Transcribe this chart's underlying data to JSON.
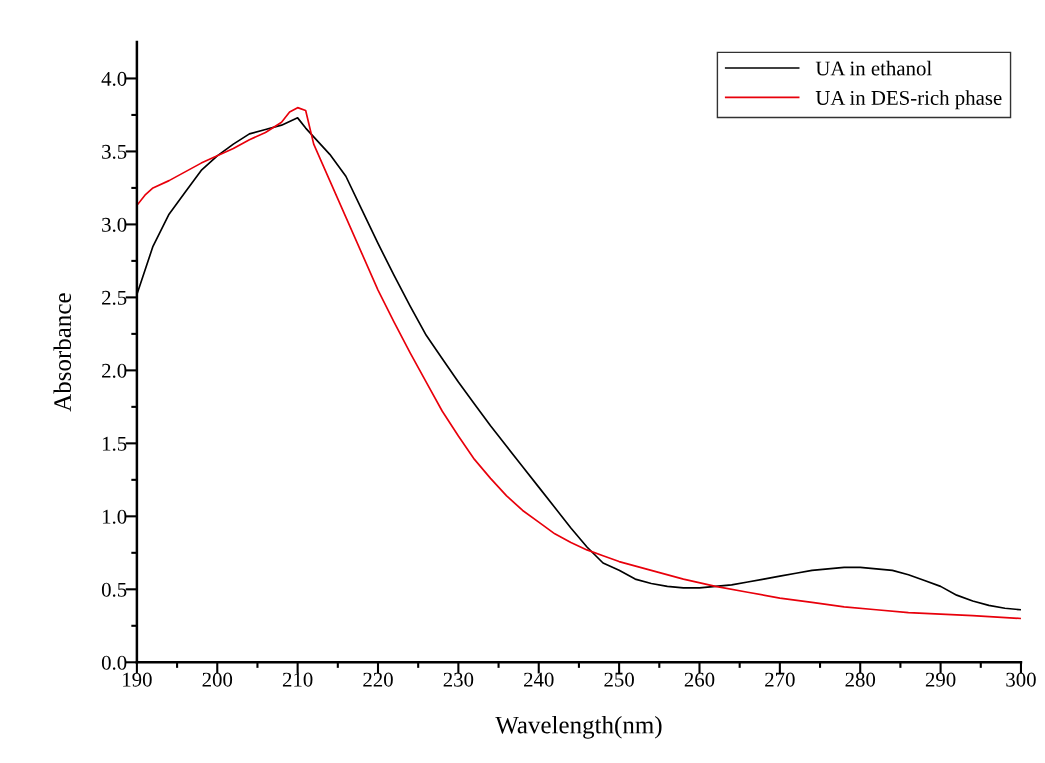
{
  "chart_data": {
    "type": "line",
    "xlabel": "Wavelength(nm)",
    "ylabel": "Absorbance",
    "legend": "top right",
    "grid": false,
    "marker": "none",
    "line_style": "solid",
    "xlim": [
      190,
      300
    ],
    "ylim": [
      0,
      4.25
    ],
    "xticks": [
      190,
      {
        "value": 195,
        "label": null
      },
      200,
      {
        "value": 205,
        "label": null
      },
      210,
      {
        "value": 215,
        "label": null
      },
      220,
      {
        "value": 225,
        "label": null
      },
      230,
      {
        "value": 235,
        "label": null
      },
      240,
      {
        "value": 245,
        "label": null
      },
      250,
      {
        "value": 255,
        "label": null
      },
      260,
      {
        "value": 265,
        "label": null
      },
      270,
      {
        "value": 275,
        "label": null
      },
      280,
      {
        "value": 285,
        "label": null
      },
      290,
      {
        "value": 295,
        "label": null
      },
      300
    ],
    "yticks": [
      {
        "value": 0,
        "label": "0.0"
      },
      {
        "value": 0.25,
        "label": null
      },
      {
        "value": 0.5,
        "label": "0.5"
      },
      {
        "value": 0.75,
        "label": null
      },
      {
        "value": 1,
        "label": "1.0"
      },
      {
        "value": 1.25,
        "label": null
      },
      {
        "value": 1.5,
        "label": "1.5"
      },
      {
        "value": 1.75,
        "label": null
      },
      {
        "value": 2,
        "label": "2.0"
      },
      {
        "value": 2.25,
        "label": null
      },
      {
        "value": 2.5,
        "label": "2.5"
      },
      {
        "value": 2.75,
        "label": null
      },
      {
        "value": 3,
        "label": "3.0"
      },
      {
        "value": 3.25,
        "label": null
      },
      {
        "value": 3.5,
        "label": "3.5"
      },
      {
        "value": 3.75,
        "label": null
      },
      {
        "value": 4,
        "label": "4.0"
      }
    ],
    "series": [
      {
        "name": "UA in ethanol",
        "color": "#000000",
        "x": [
          190,
          192,
          194,
          196,
          198,
          200,
          202,
          204,
          206,
          208,
          210,
          211,
          212,
          214,
          216,
          218,
          220,
          222,
          224,
          226,
          228,
          230,
          232,
          234,
          236,
          238,
          240,
          242,
          244,
          246,
          248,
          250,
          252,
          254,
          256,
          258,
          260,
          262,
          264,
          266,
          268,
          270,
          272,
          274,
          276,
          278,
          280,
          282,
          284,
          286,
          288,
          290,
          292,
          294,
          296,
          298,
          300
        ],
        "values": [
          2.52,
          2.85,
          3.07,
          3.22,
          3.37,
          3.47,
          3.55,
          3.62,
          3.65,
          3.68,
          3.73,
          3.66,
          3.6,
          3.48,
          3.33,
          3.1,
          2.87,
          2.65,
          2.44,
          2.24,
          2.08,
          1.92,
          1.77,
          1.62,
          1.48,
          1.34,
          1.2,
          1.06,
          0.92,
          0.79,
          0.68,
          0.63,
          0.57,
          0.54,
          0.52,
          0.51,
          0.51,
          0.52,
          0.53,
          0.55,
          0.57,
          0.59,
          0.61,
          0.63,
          0.64,
          0.65,
          0.65,
          0.64,
          0.63,
          0.6,
          0.56,
          0.52,
          0.46,
          0.42,
          0.39,
          0.37,
          0.36
        ]
      },
      {
        "name": "UA in DES-rich phase",
        "color": "#e8000b",
        "x": [
          190,
          191,
          192,
          194,
          196,
          198,
          200,
          202,
          204,
          206,
          208,
          209,
          210,
          211,
          212,
          214,
          216,
          218,
          220,
          222,
          224,
          226,
          228,
          230,
          232,
          234,
          236,
          238,
          240,
          242,
          244,
          246,
          248,
          250,
          254,
          258,
          262,
          266,
          270,
          274,
          278,
          282,
          286,
          290,
          294,
          300
        ],
        "values": [
          3.13,
          3.2,
          3.25,
          3.3,
          3.36,
          3.42,
          3.47,
          3.52,
          3.58,
          3.63,
          3.7,
          3.77,
          3.8,
          3.78,
          3.55,
          3.3,
          3.05,
          2.8,
          2.55,
          2.33,
          2.12,
          1.92,
          1.72,
          1.55,
          1.39,
          1.26,
          1.14,
          1.04,
          0.96,
          0.88,
          0.82,
          0.77,
          0.73,
          0.69,
          0.63,
          0.57,
          0.52,
          0.48,
          0.44,
          0.41,
          0.38,
          0.36,
          0.34,
          0.33,
          0.32,
          0.3
        ]
      }
    ]
  }
}
